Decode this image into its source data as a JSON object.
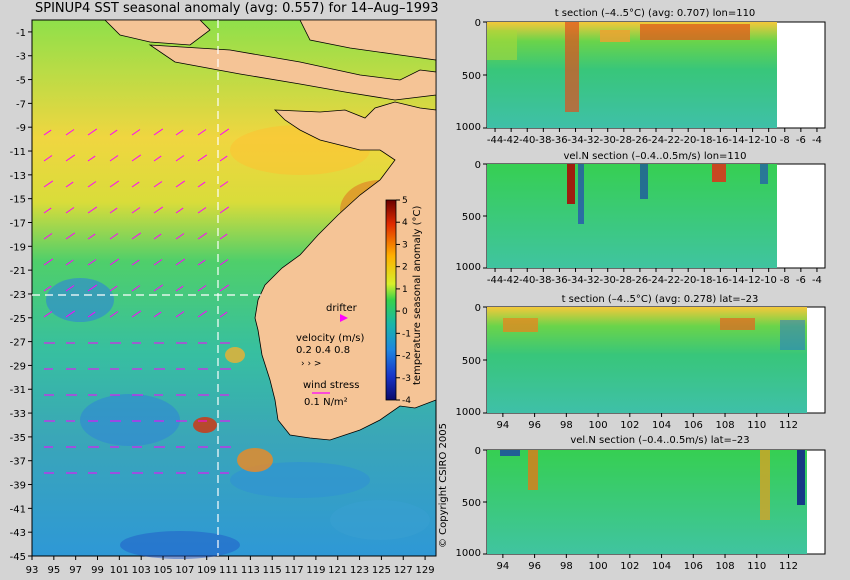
{
  "map": {
    "title": "SPINUP4 SST seasonal anomaly (avg: 0.557) for 14–Aug–1993",
    "lon_ticks": [
      93,
      95,
      97,
      99,
      101,
      103,
      105,
      107,
      109,
      111,
      113,
      115,
      117,
      119,
      121,
      123,
      125,
      127,
      129
    ],
    "lat_ticks": [
      -1,
      -3,
      -5,
      -7,
      -9,
      -11,
      -13,
      -15,
      -17,
      -19,
      -21,
      -23,
      -25,
      -27,
      -29,
      -31,
      -33,
      -35,
      -37,
      -39,
      -41,
      -43,
      -45
    ],
    "section_lon": 110,
    "section_lat": -23,
    "colorbar": {
      "label": "temperature seasonal anomaly (°C)",
      "ticks": [
        5,
        4,
        3,
        2,
        1,
        0,
        -1,
        -2,
        -3,
        -4
      ]
    },
    "legend": {
      "drifter": "drifter",
      "velocity_title": "velocity (m/s)",
      "velocity_values": "0.2 0.4 0.8",
      "wind_title": "wind stress",
      "wind_value": "0.1 N/m²"
    },
    "copyright": "© Copyright CSIRO 2005"
  },
  "chart_data": [
    {
      "type": "heatmap",
      "title": "t section (–4..5°C) (avg: 0.707) lon=110",
      "x_ticks": [
        "-44",
        "-42",
        "-40",
        "-38",
        "-36",
        "-34",
        "-32",
        "-30",
        "-28",
        "-26",
        "-24",
        "-22",
        "-20",
        "-18",
        "-16",
        "-14",
        "-12",
        "-10",
        "-8",
        "-6",
        "-4"
      ],
      "y_ticks": [
        "0",
        "500",
        "1000"
      ],
      "ylim": [
        0,
        1000
      ]
    },
    {
      "type": "heatmap",
      "title": "vel.N section (–0.4..0.5m/s) lon=110",
      "x_ticks": [
        "-44",
        "-42",
        "-40",
        "-38",
        "-36",
        "-34",
        "-32",
        "-30",
        "-28",
        "-26",
        "-24",
        "-22",
        "-20",
        "-18",
        "-16",
        "-14",
        "-12",
        "-10",
        "-8",
        "-6",
        "-4"
      ],
      "y_ticks": [
        "0",
        "500",
        "1000"
      ],
      "ylim": [
        0,
        1000
      ]
    },
    {
      "type": "heatmap",
      "title": "t section (–4..5°C) (avg: 0.278) lat=–23",
      "x_ticks": [
        "94",
        "96",
        "98",
        "100",
        "102",
        "104",
        "106",
        "108",
        "110",
        "112"
      ],
      "y_ticks": [
        "0",
        "500",
        "1000"
      ],
      "ylim": [
        0,
        1000
      ]
    },
    {
      "type": "heatmap",
      "title": "vel.N section (–0.4..0.5m/s) lat=–23",
      "x_ticks": [
        "94",
        "96",
        "98",
        "100",
        "102",
        "104",
        "106",
        "108",
        "110",
        "112"
      ],
      "y_ticks": [
        "0",
        "500",
        "1000"
      ],
      "ylim": [
        0,
        1000
      ]
    }
  ]
}
